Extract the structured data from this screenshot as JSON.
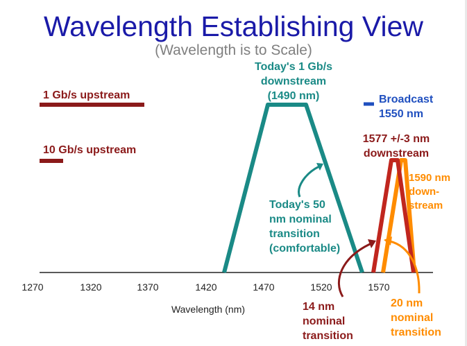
{
  "title": "Wavelength Establishing View",
  "subtitle": "(Wavelength is to Scale)",
  "axis": {
    "ticks": [
      "1270",
      "1320",
      "1370",
      "1420",
      "1470",
      "1520",
      "1570"
    ],
    "label": "Wavelength (nm)"
  },
  "labels": {
    "up_1g": "1 Gb/s upstream",
    "up_10g": "10 Gb/s upstream",
    "down_1g": [
      "Today's 1 Gb/s",
      "downstream",
      "(1490 nm)"
    ],
    "broadcast": [
      "Broadcast",
      "1550 nm"
    ],
    "down_1577": [
      "1577 +/-3 nm",
      "downstream"
    ],
    "down_1590": [
      "1590 nm",
      "down-",
      "stream"
    ],
    "transition_50": [
      "Today's 50",
      "nm nominal",
      "transition",
      "(comfortable)"
    ],
    "transition_14": [
      "14 nm",
      "nominal",
      "transition"
    ],
    "transition_20": [
      "20 nm",
      "nominal",
      "transition"
    ]
  },
  "colors": {
    "title": "#1a1aa8",
    "upstream": "#8b1a1a",
    "teal": "#1a8a86",
    "broadcast": "#1f4fbf",
    "orange": "#ff8c00",
    "dark_red": "#8b1a1a",
    "red": "#c0261e"
  },
  "icons": [
    "curved-arrow-icon",
    "curved-arrow-icon",
    "curved-arrow-icon"
  ]
}
